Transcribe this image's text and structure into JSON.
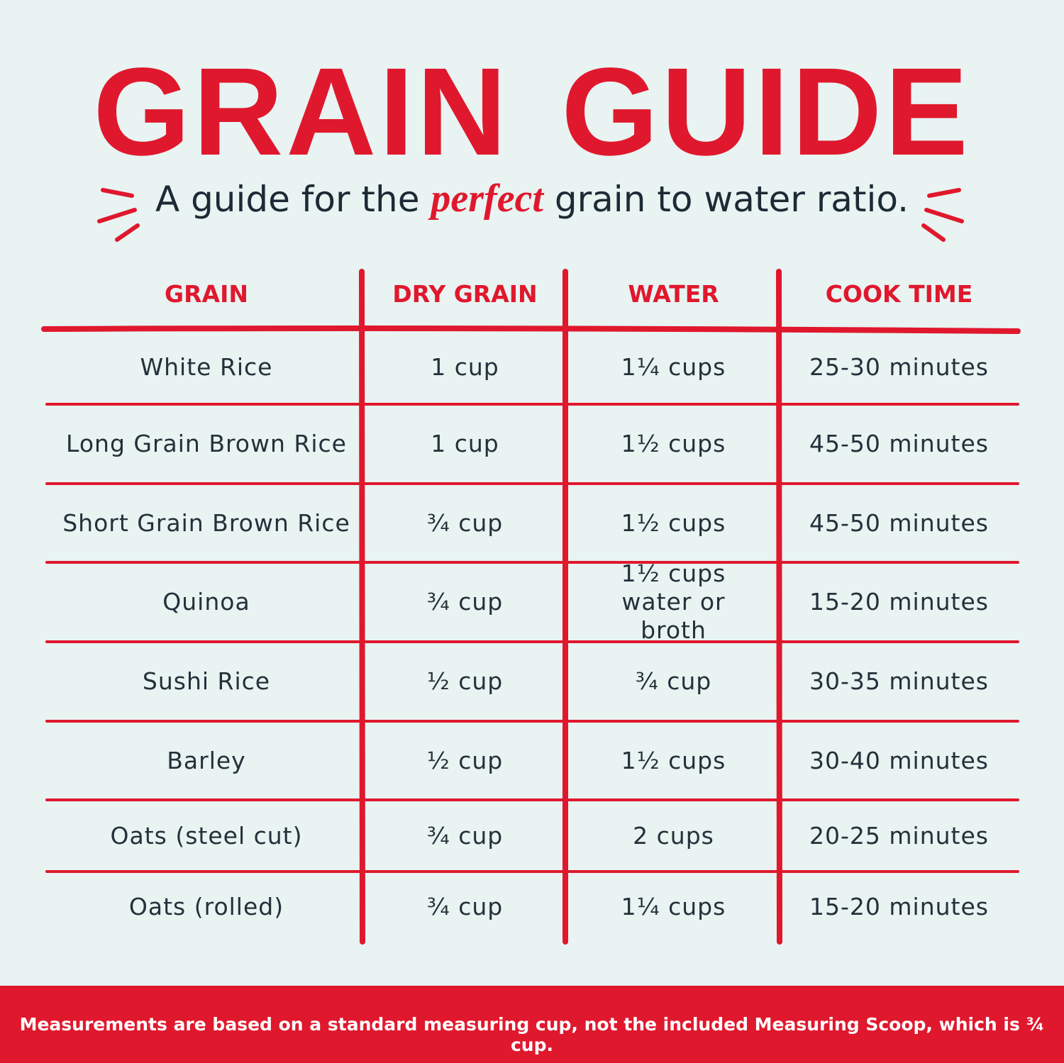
{
  "header": {
    "title": "GRAIN GUIDE",
    "subtitle_before": "A guide for the",
    "subtitle_emphasis": "perfect",
    "subtitle_after": "grain to water ratio."
  },
  "table": {
    "columns": [
      "GRAIN",
      "DRY GRAIN",
      "WATER",
      "COOK TIME"
    ],
    "rows": [
      [
        "White Rice",
        "1 cup",
        "1¼ cups",
        "25-30 minutes"
      ],
      [
        "Long Grain Brown Rice",
        "1 cup",
        "1½ cups",
        "45-50 minutes"
      ],
      [
        "Short Grain Brown Rice",
        "¾ cup",
        "1½ cups",
        "45-50 minutes"
      ],
      [
        "Quinoa",
        "¾ cup",
        "1½ cups water or broth",
        "15-20 minutes"
      ],
      [
        "Sushi Rice",
        "½ cup",
        "¾ cup",
        "30-35 minutes"
      ],
      [
        "Barley",
        "½ cup",
        "1½ cups",
        "30-40 minutes"
      ],
      [
        "Oats (steel cut)",
        "¾ cup",
        "2 cups",
        "20-25 minutes"
      ],
      [
        "Oats (rolled)",
        "¾ cup",
        "1¼ cups",
        "15-20 minutes"
      ]
    ]
  },
  "footer": {
    "note": "Measurements are based on a standard measuring cup, not the included Measuring Scoop, which is ¾ cup."
  }
}
